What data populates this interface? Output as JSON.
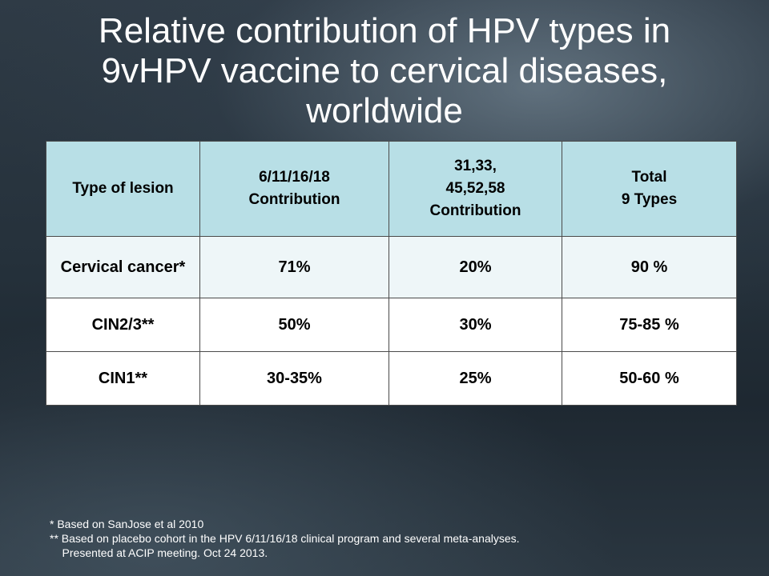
{
  "slide": {
    "title_lines": [
      "Relative contribution of HPV types in",
      "9vHPV vaccine to cervical diseases,",
      "worldwide"
    ]
  },
  "table": {
    "headers": [
      [
        "Type of lesion"
      ],
      [
        "6/11/16/18",
        "Contribution"
      ],
      [
        "31,33,",
        "45,52,58",
        "Contribution"
      ],
      [
        "Total",
        "9 Types"
      ]
    ],
    "rows": [
      {
        "lesion": "Cervical cancer*",
        "c1": "71%",
        "c2": "20%",
        "total": "90 %"
      },
      {
        "lesion": "CIN2/3**",
        "c1": "50%",
        "c2": "30%",
        "total": "75-85 %"
      },
      {
        "lesion": "CIN1**",
        "c1": "30-35%",
        "c2": "25%",
        "total": "50-60 %"
      }
    ]
  },
  "footnotes": [
    "* Based on SanJose et al 2010",
    "** Based on placebo cohort in the HPV 6/11/16/18 clinical program and several meta-analyses.",
    "    Presented at ACIP meeting. Oct 24 2013."
  ]
}
